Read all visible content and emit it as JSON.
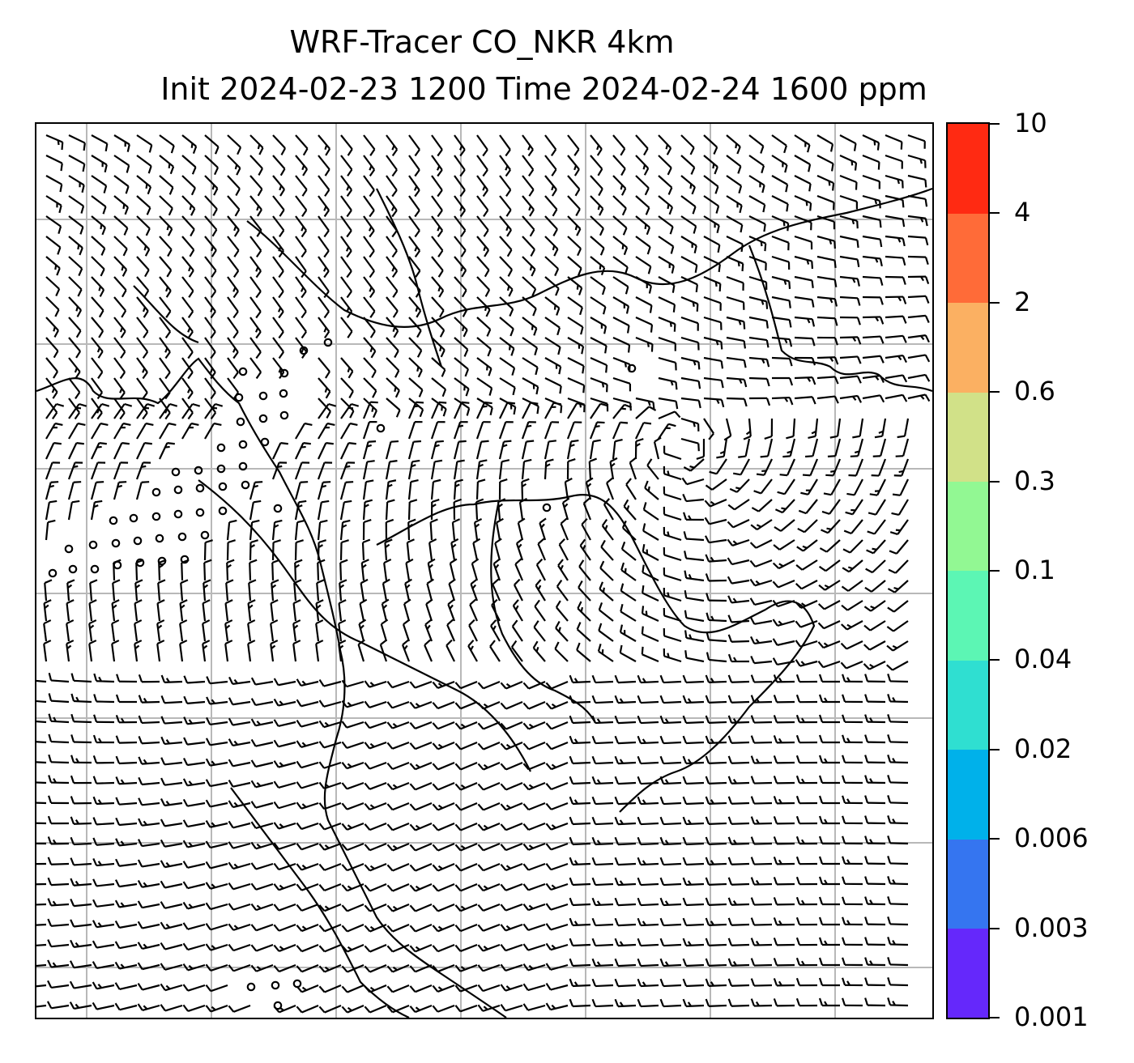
{
  "title": {
    "line1": "WRF-Tracer CO_NKR 4km",
    "line2": "Init 2024-02-23 1200 Time 2024-02-24 1600 ppm"
  },
  "colorbar": {
    "levels": [
      "0.001",
      "0.003",
      "0.006",
      "0.02",
      "0.04",
      "0.1",
      "0.3",
      "0.6",
      "2",
      "4",
      "10"
    ],
    "colors": [
      "#6528fb",
      "#3575f0",
      "#00b1ea",
      "#2fdfd1",
      "#5cf6b4",
      "#92f893",
      "#d1e188",
      "#fbb062",
      "#ff6b38",
      "#ff2a12"
    ]
  },
  "map": {
    "gridlines": true,
    "coastlines": true,
    "wind_barbs": true,
    "calm_circles": true,
    "tracer_shading": false
  }
}
